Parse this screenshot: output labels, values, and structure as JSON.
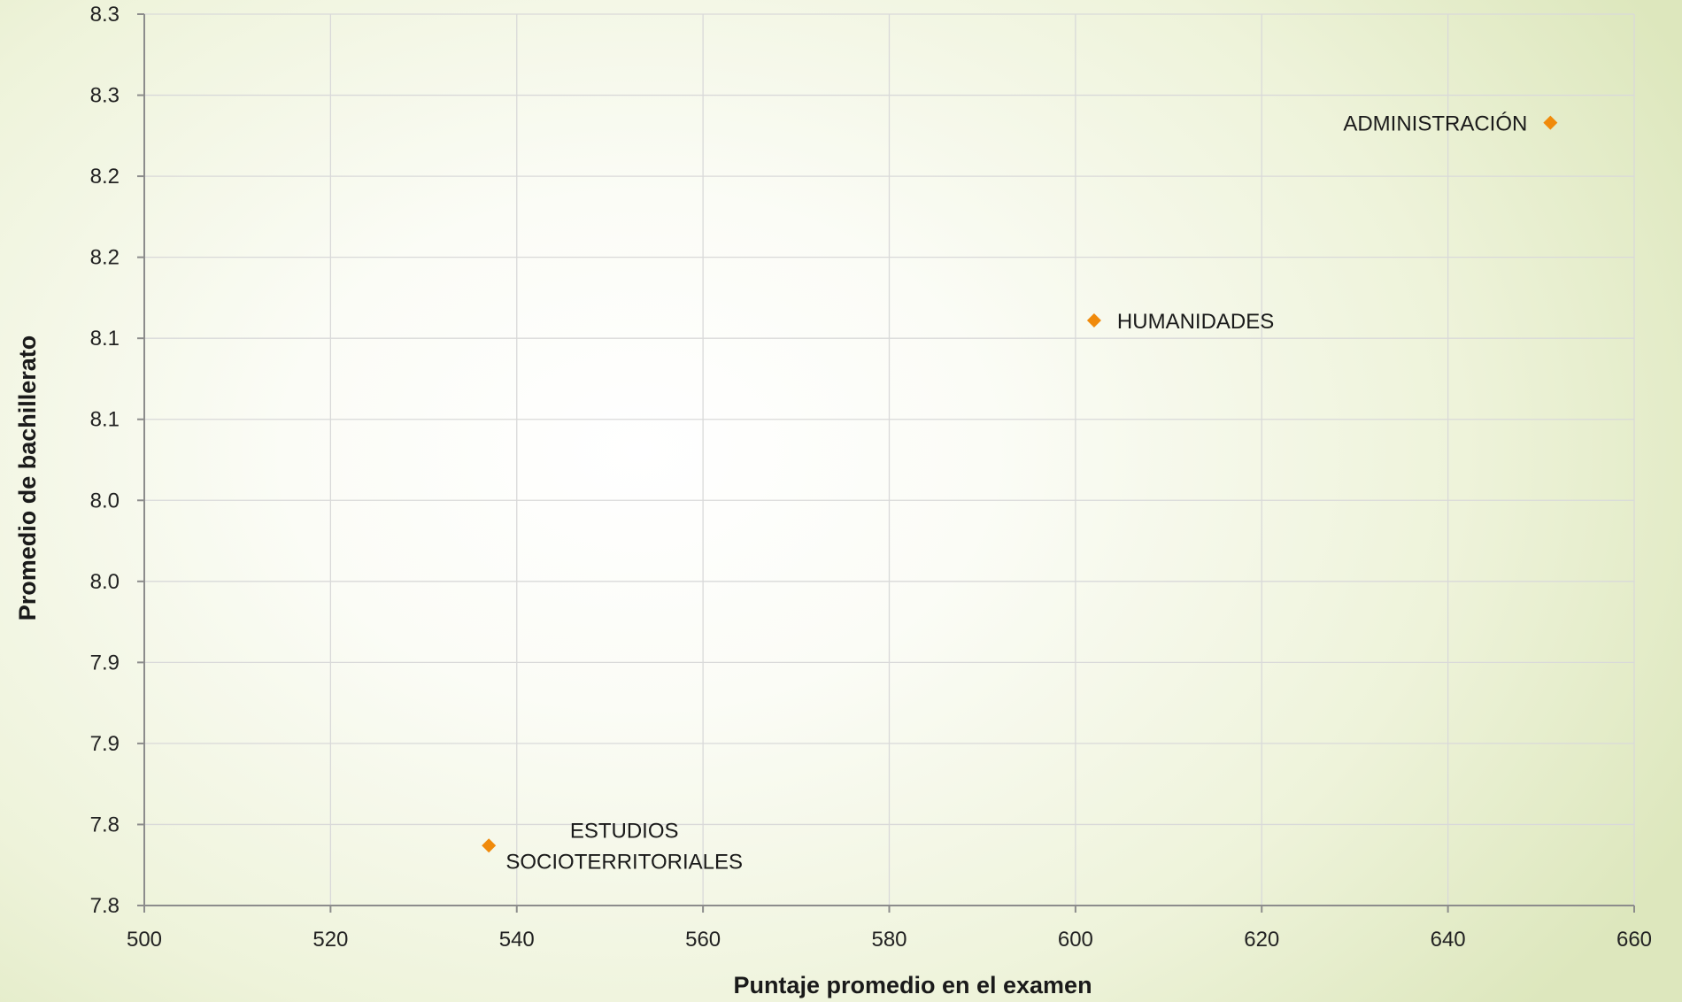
{
  "chart_data": {
    "type": "scatter",
    "title": "",
    "xlabel": "Puntaje promedio en el examen",
    "ylabel": "Promedio de bachillerato",
    "xlim": [
      500,
      660
    ],
    "ylim": [
      7.75,
      8.3
    ],
    "x_ticks": [
      500,
      520,
      540,
      560,
      580,
      600,
      620,
      640,
      660
    ],
    "x_tick_labels": [
      "500",
      "520",
      "540",
      "560",
      "580",
      "600",
      "620",
      "640",
      "660"
    ],
    "y_ticks": [
      7.75,
      7.8,
      7.85,
      7.9,
      7.95,
      8.0,
      8.05,
      8.1,
      8.15,
      8.2,
      8.25,
      8.3
    ],
    "y_tick_labels": [
      "7.8",
      "7.8",
      "7.9",
      "7.9",
      "8.0",
      "8.0",
      "8.1",
      "8.1",
      "8.2",
      "8.2",
      "8.3",
      "8.3"
    ],
    "grid": true,
    "marker_color": "#f08a0b",
    "marker_shape": "diamond",
    "points": [
      {
        "label_lines": [
          "ADMINISTRACIÓN"
        ],
        "x": 651,
        "y": 8.233,
        "label_side": "left"
      },
      {
        "label_lines": [
          "HUMANIDADES"
        ],
        "x": 602,
        "y": 8.111,
        "label_side": "right"
      },
      {
        "label_lines": [
          "ESTUDIOS",
          "SOCIOTERRITORIALES"
        ],
        "x": 537,
        "y": 7.787,
        "label_side": "right"
      }
    ]
  }
}
